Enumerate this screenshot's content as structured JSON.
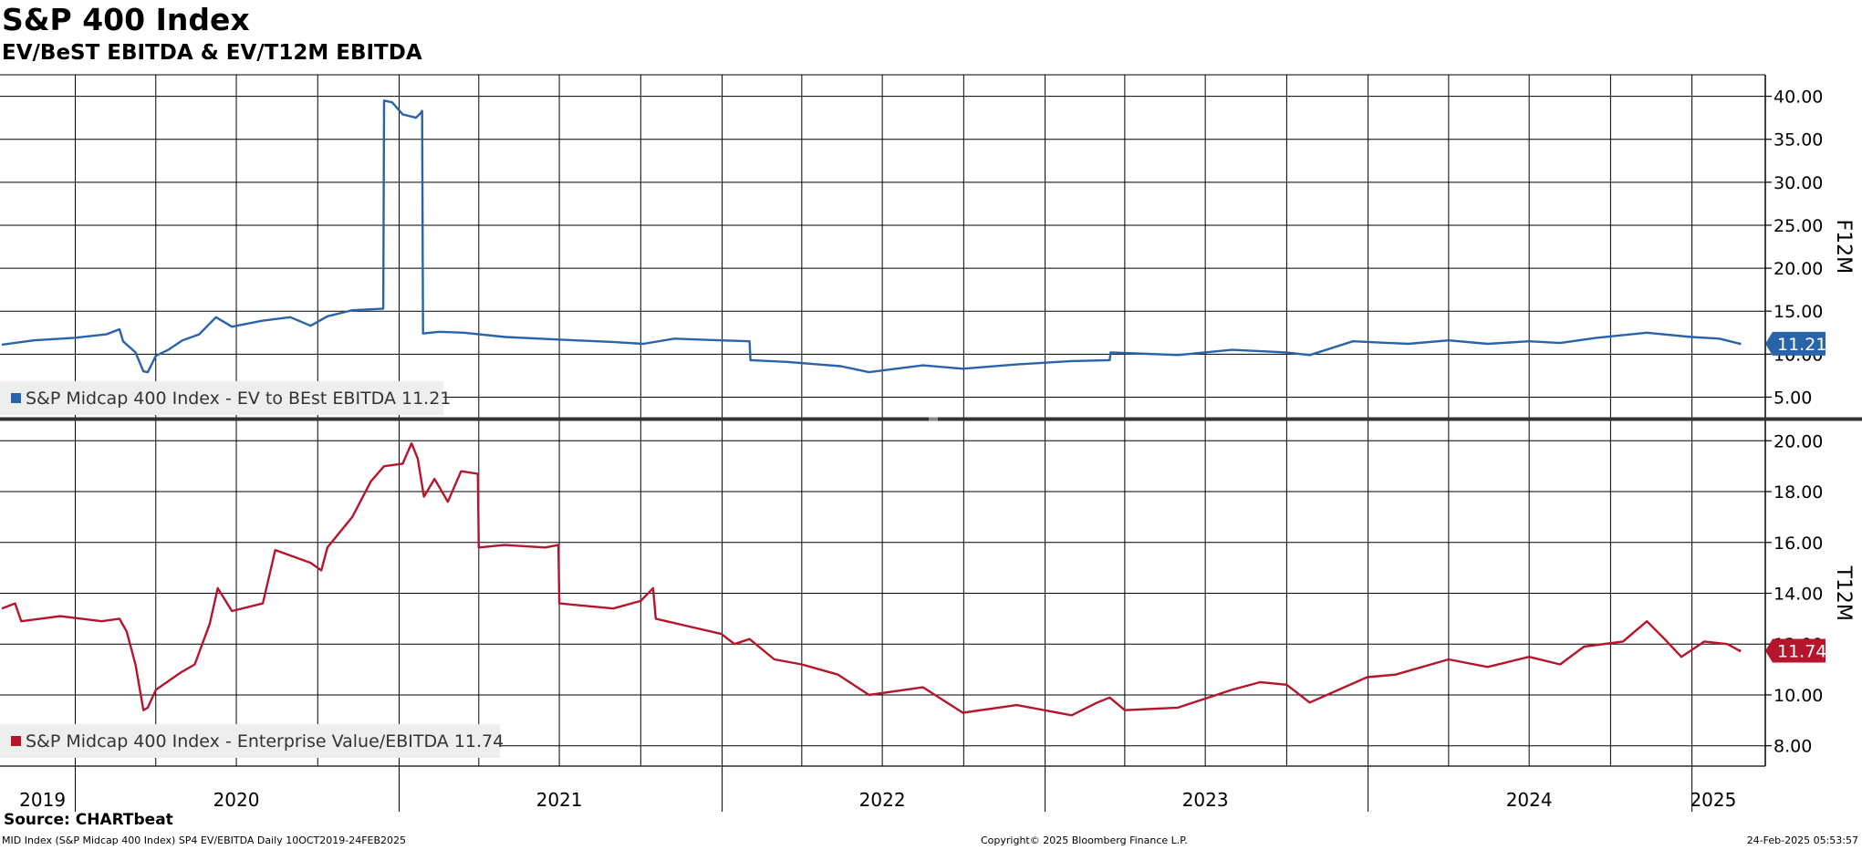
{
  "header": {
    "title": "S&P 400 Index",
    "subtitle": "EV/BeST EBITDA & EV/T12M EBITDA"
  },
  "footer": {
    "source": "Source: CHARTbeat",
    "left": "MID Index (S&P Midcap 400 Index) SP4 EV/EBITDA  Daily 10OCT2019-24FEB2025",
    "center": "Copyright© 2025 Bloomberg Finance L.P.",
    "right": "24-Feb-2025 05:53:57"
  },
  "colors": {
    "top_series": "#2a64a8",
    "bottom_series": "#b5162b",
    "grid": "#000000",
    "legend_bg": "#eeeeee"
  },
  "chart_data": [
    {
      "type": "line",
      "panel": "top",
      "axis_label": "F12M",
      "ylim": [
        2.5,
        42.5
      ],
      "yticks": [
        "40.00",
        "35.00",
        "30.00",
        "25.00",
        "20.00",
        "15.00",
        "10.00",
        "5.00"
      ],
      "ytick_values": [
        40,
        35,
        30,
        25,
        20,
        15,
        10,
        5
      ],
      "last_value_label": "11.21",
      "legend": "S&P Midcap 400 Index - EV to BEst EBITDA 11.21",
      "series": [
        {
          "name": "S&P Midcap 400 Index - EV to BEst EBITDA",
          "points": [
            [
              "2019-10-10",
              11.1
            ],
            [
              "2019-11-15",
              11.6
            ],
            [
              "2019-12-31",
              11.9
            ],
            [
              "2020-02-05",
              12.3
            ],
            [
              "2020-02-20",
              12.9
            ],
            [
              "2020-02-24",
              11.5
            ],
            [
              "2020-03-09",
              10.2
            ],
            [
              "2020-03-18",
              8.0
            ],
            [
              "2020-03-23",
              7.9
            ],
            [
              "2020-04-01",
              9.8
            ],
            [
              "2020-04-15",
              10.5
            ],
            [
              "2020-05-01",
              11.6
            ],
            [
              "2020-05-20",
              12.3
            ],
            [
              "2020-06-08",
              14.3
            ],
            [
              "2020-06-26",
              13.2
            ],
            [
              "2020-07-31",
              13.9
            ],
            [
              "2020-08-31",
              14.3
            ],
            [
              "2020-09-23",
              13.3
            ],
            [
              "2020-10-12",
              14.4
            ],
            [
              "2020-11-09",
              15.1
            ],
            [
              "2020-12-14",
              15.3
            ],
            [
              "2020-12-15",
              39.5
            ],
            [
              "2020-12-24",
              39.3
            ],
            [
              "2021-01-05",
              37.9
            ],
            [
              "2021-01-20",
              37.5
            ],
            [
              "2021-01-25",
              38.0
            ],
            [
              "2021-01-27",
              38.3
            ],
            [
              "2021-01-28",
              12.4
            ],
            [
              "2021-02-15",
              12.6
            ],
            [
              "2021-03-15",
              12.5
            ],
            [
              "2021-05-01",
              12.0
            ],
            [
              "2021-06-30",
              11.7
            ],
            [
              "2021-09-01",
              11.4
            ],
            [
              "2021-10-04",
              11.2
            ],
            [
              "2021-11-08",
              11.8
            ],
            [
              "2021-12-31",
              11.6
            ],
            [
              "2022-02-01",
              11.5
            ],
            [
              "2022-02-02",
              9.3
            ],
            [
              "2022-03-15",
              9.1
            ],
            [
              "2022-05-15",
              8.6
            ],
            [
              "2022-06-16",
              7.9
            ],
            [
              "2022-08-16",
              8.7
            ],
            [
              "2022-09-30",
              8.3
            ],
            [
              "2022-11-30",
              8.8
            ],
            [
              "2023-01-31",
              9.2
            ],
            [
              "2023-03-15",
              9.3
            ],
            [
              "2023-03-16",
              10.2
            ],
            [
              "2023-05-31",
              9.9
            ],
            [
              "2023-07-31",
              10.5
            ],
            [
              "2023-09-30",
              10.2
            ],
            [
              "2023-10-27",
              9.9
            ],
            [
              "2023-12-15",
              11.5
            ],
            [
              "2024-02-15",
              11.2
            ],
            [
              "2024-04-01",
              11.6
            ],
            [
              "2024-05-15",
              11.2
            ],
            [
              "2024-07-01",
              11.5
            ],
            [
              "2024-08-05",
              11.3
            ],
            [
              "2024-09-15",
              11.9
            ],
            [
              "2024-11-11",
              12.5
            ],
            [
              "2024-12-31",
              12.0
            ],
            [
              "2025-02-01",
              11.8
            ],
            [
              "2025-02-24",
              11.21
            ]
          ]
        }
      ]
    },
    {
      "type": "line",
      "panel": "bottom",
      "axis_label": "T12M",
      "ylim": [
        7.2,
        20.8
      ],
      "yticks": [
        "20.00",
        "18.00",
        "16.00",
        "14.00",
        "12.00",
        "10.00",
        "8.00"
      ],
      "ytick_values": [
        20,
        18,
        16,
        14,
        12,
        10,
        8
      ],
      "last_value_label": "11.74",
      "legend": "S&P Midcap 400 Index - Enterprise Value/EBITDA 11.74",
      "series": [
        {
          "name": "S&P Midcap 400 Index - Enterprise Value/EBITDA",
          "points": [
            [
              "2019-10-10",
              13.4
            ],
            [
              "2019-10-25",
              13.6
            ],
            [
              "2019-11-01",
              12.9
            ],
            [
              "2019-12-15",
              13.1
            ],
            [
              "2020-01-31",
              12.9
            ],
            [
              "2020-02-20",
              13.0
            ],
            [
              "2020-02-28",
              12.5
            ],
            [
              "2020-03-09",
              11.2
            ],
            [
              "2020-03-18",
              9.4
            ],
            [
              "2020-03-23",
              9.5
            ],
            [
              "2020-04-01",
              10.2
            ],
            [
              "2020-04-30",
              10.9
            ],
            [
              "2020-05-15",
              11.2
            ],
            [
              "2020-06-01",
              12.8
            ],
            [
              "2020-06-10",
              14.2
            ],
            [
              "2020-06-26",
              13.3
            ],
            [
              "2020-07-31",
              13.6
            ],
            [
              "2020-08-14",
              15.7
            ],
            [
              "2020-09-23",
              15.2
            ],
            [
              "2020-10-05",
              14.9
            ],
            [
              "2020-10-12",
              15.8
            ],
            [
              "2020-11-09",
              17.0
            ],
            [
              "2020-11-30",
              18.4
            ],
            [
              "2020-12-15",
              19.0
            ],
            [
              "2021-01-05",
              19.1
            ],
            [
              "2021-01-15",
              19.9
            ],
            [
              "2021-01-22",
              19.3
            ],
            [
              "2021-01-29",
              17.8
            ],
            [
              "2021-02-10",
              18.5
            ],
            [
              "2021-02-25",
              17.6
            ],
            [
              "2021-03-12",
              18.8
            ],
            [
              "2021-03-31",
              18.7
            ],
            [
              "2021-04-01",
              15.8
            ],
            [
              "2021-04-30",
              15.9
            ],
            [
              "2021-06-15",
              15.8
            ],
            [
              "2021-06-30",
              15.9
            ],
            [
              "2021-07-01",
              13.6
            ],
            [
              "2021-08-31",
              13.4
            ],
            [
              "2021-10-01",
              13.7
            ],
            [
              "2021-10-15",
              14.2
            ],
            [
              "2021-10-18",
              13.0
            ],
            [
              "2021-12-31",
              12.4
            ],
            [
              "2022-01-15",
              12.0
            ],
            [
              "2022-02-01",
              12.2
            ],
            [
              "2022-03-01",
              11.4
            ],
            [
              "2022-04-01",
              11.2
            ],
            [
              "2022-05-12",
              10.8
            ],
            [
              "2022-06-16",
              10.0
            ],
            [
              "2022-08-16",
              10.3
            ],
            [
              "2022-09-30",
              9.3
            ],
            [
              "2022-11-30",
              9.6
            ],
            [
              "2023-01-31",
              9.2
            ],
            [
              "2023-03-01",
              9.7
            ],
            [
              "2023-03-15",
              9.9
            ],
            [
              "2023-04-01",
              9.4
            ],
            [
              "2023-05-31",
              9.5
            ],
            [
              "2023-07-31",
              10.2
            ],
            [
              "2023-09-01",
              10.5
            ],
            [
              "2023-10-01",
              10.4
            ],
            [
              "2023-10-27",
              9.7
            ],
            [
              "2023-12-31",
              10.7
            ],
            [
              "2024-02-01",
              10.8
            ],
            [
              "2024-04-01",
              11.4
            ],
            [
              "2024-05-15",
              11.1
            ],
            [
              "2024-07-01",
              11.5
            ],
            [
              "2024-08-05",
              11.2
            ],
            [
              "2024-09-01",
              11.9
            ],
            [
              "2024-10-15",
              12.1
            ],
            [
              "2024-11-11",
              12.9
            ],
            [
              "2024-12-01",
              12.2
            ],
            [
              "2024-12-20",
              11.5
            ],
            [
              "2025-01-15",
              12.1
            ],
            [
              "2025-02-10",
              12.0
            ],
            [
              "2025-02-24",
              11.74
            ]
          ]
        }
      ]
    }
  ],
  "x_axis": {
    "range": [
      "2019-10-10",
      "2025-02-24"
    ],
    "year_labels": [
      {
        "label": "2019",
        "date": "2019-11-25"
      },
      {
        "label": "2020",
        "date": "2020-07-01"
      },
      {
        "label": "2021",
        "date": "2021-07-01"
      },
      {
        "label": "2022",
        "date": "2022-07-01"
      },
      {
        "label": "2023",
        "date": "2023-07-01"
      },
      {
        "label": "2024",
        "date": "2024-07-01"
      },
      {
        "label": "2025",
        "date": "2025-01-25"
      }
    ],
    "year_boundaries": [
      "2020-01-01",
      "2021-01-01",
      "2022-01-01",
      "2023-01-01",
      "2024-01-01",
      "2025-01-01"
    ],
    "grid_dates": [
      "2020-01-01",
      "2020-04-01",
      "2020-07-01",
      "2020-10-01",
      "2021-01-01",
      "2021-04-01",
      "2021-07-01",
      "2021-10-01",
      "2022-01-01",
      "2022-04-01",
      "2022-07-01",
      "2022-10-01",
      "2023-01-01",
      "2023-04-01",
      "2023-07-01",
      "2023-10-01",
      "2024-01-01",
      "2024-04-01",
      "2024-07-01",
      "2024-10-01",
      "2025-01-01"
    ]
  }
}
